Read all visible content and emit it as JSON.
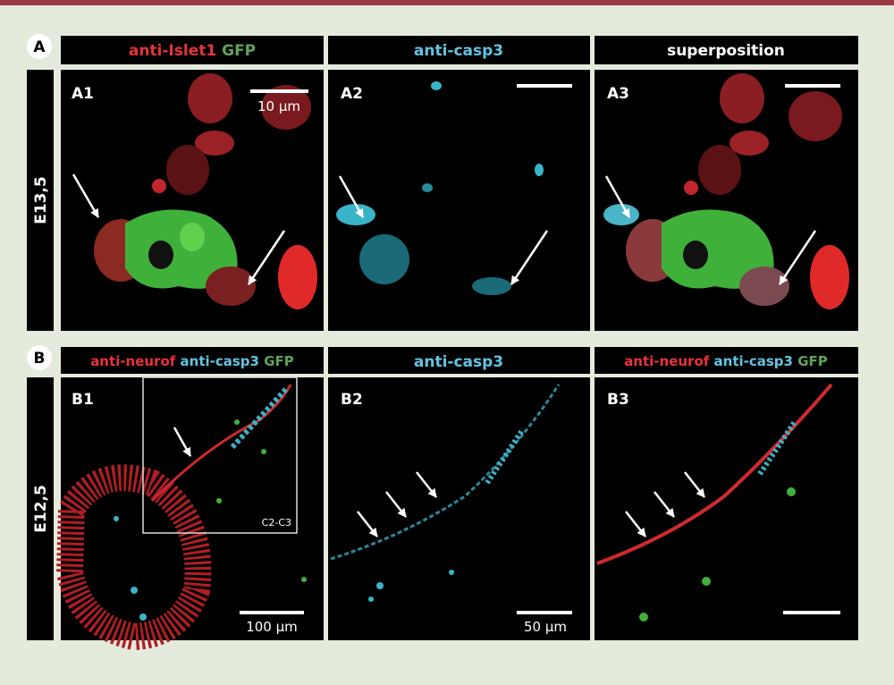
{
  "rows": [
    {
      "letter": "A",
      "stage": "E13,5",
      "panels": [
        {
          "label": "A1",
          "header": [
            "anti-Islet1",
            "GFP"
          ],
          "scale": "10 µm"
        },
        {
          "label": "A2",
          "header": [
            "anti-casp3"
          ]
        },
        {
          "label": "A3",
          "header": [
            "superposition"
          ]
        }
      ]
    },
    {
      "letter": "B",
      "stage": "E12,5",
      "panels": [
        {
          "label": "B1",
          "header": [
            "anti-neurof",
            "anti-casp3",
            "GFP"
          ],
          "scale": "100 µm",
          "inset": "C2-C3"
        },
        {
          "label": "B2",
          "header": [
            "anti-casp3"
          ],
          "scale": "50 µm"
        },
        {
          "label": "B3",
          "header": [
            "anti-neurof",
            "anti-casp3",
            "GFP"
          ]
        }
      ]
    }
  ]
}
